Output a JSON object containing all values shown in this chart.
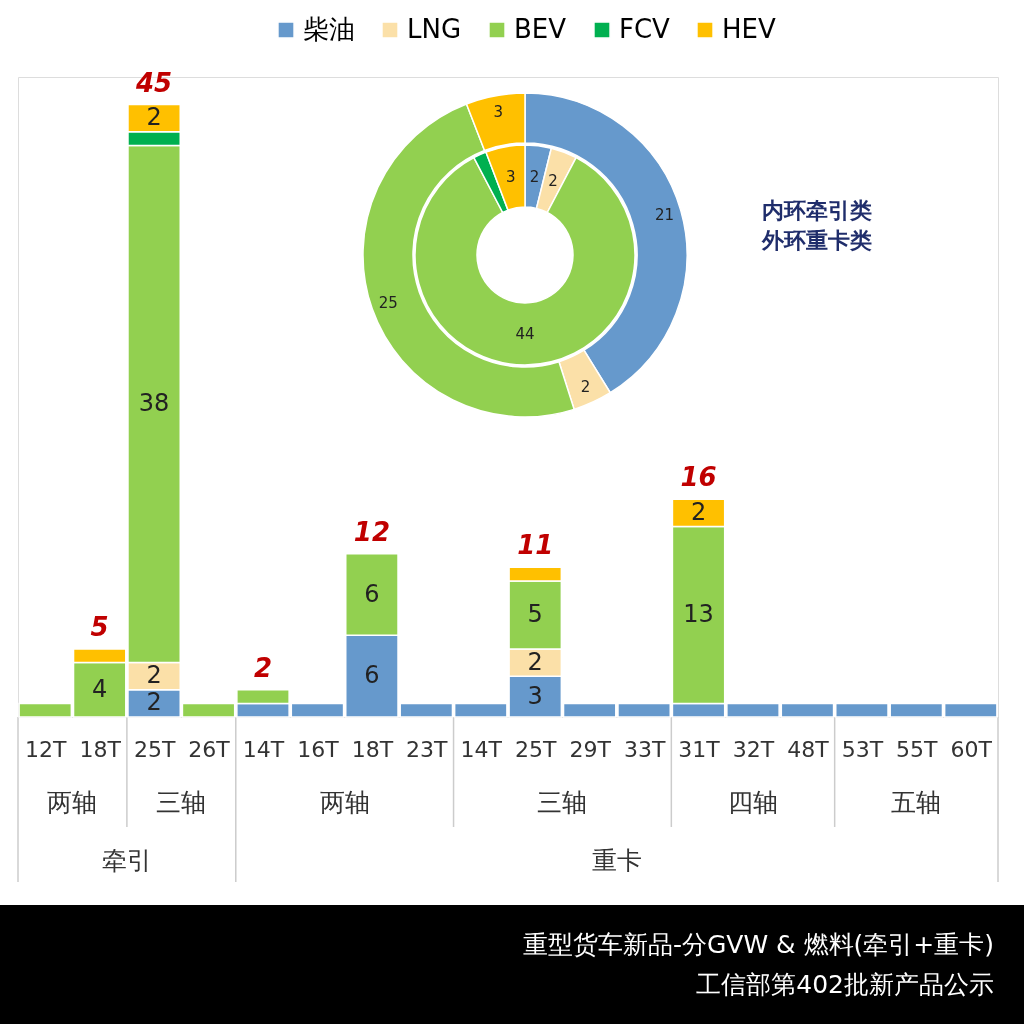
{
  "chart_data": [
    {
      "type": "bar",
      "stacked": true,
      "title": "重型货车新品-分GVW & 燃料(牵引+重卡)",
      "subtitle": "工信部第402批新产品公示",
      "categories": [
        "12T",
        "18T",
        "25T",
        "26T",
        "14T",
        "16T",
        "18T",
        "23T",
        "14T",
        "25T",
        "29T",
        "33T",
        "31T",
        "32T",
        "48T",
        "53T",
        "55T",
        "60T"
      ],
      "series": [
        {
          "color": "#6699cc",
          "values": [
            null,
            null,
            2,
            null,
            1,
            1,
            6,
            1,
            1,
            3,
            1,
            1,
            1,
            1,
            1,
            1,
            1,
            1
          ],
          "value_labels": [
            null,
            null,
            "2",
            null,
            null,
            null,
            "6",
            null,
            null,
            "3",
            null,
            null,
            null,
            null,
            null,
            null,
            null,
            null
          ]
        },
        {
          "color": "#fbe0a8",
          "values": [
            null,
            null,
            2,
            null,
            null,
            null,
            null,
            null,
            null,
            2,
            null,
            null,
            null,
            null,
            null,
            null,
            null,
            null
          ],
          "value_labels": [
            null,
            null,
            "2",
            null,
            null,
            null,
            null,
            null,
            null,
            "2",
            null,
            null,
            null,
            null,
            null,
            null,
            null,
            null
          ]
        },
        {
          "color": "#92d050",
          "values": [
            1,
            4,
            38,
            1,
            1,
            null,
            6,
            null,
            null,
            5,
            null,
            null,
            13,
            null,
            null,
            null,
            null,
            null
          ],
          "value_labels": [
            null,
            "4",
            "38",
            null,
            null,
            null,
            "6",
            null,
            null,
            "5",
            null,
            null,
            "13",
            null,
            null,
            null,
            null,
            null
          ]
        },
        {
          "color": "#00b050",
          "values": [
            null,
            null,
            1,
            null,
            null,
            null,
            null,
            null,
            null,
            null,
            null,
            null,
            null,
            null,
            null,
            null,
            null,
            null
          ],
          "value_labels": [
            null,
            null,
            null,
            null,
            null,
            null,
            null,
            null,
            null,
            null,
            null,
            null,
            null,
            null,
            null,
            null,
            null,
            null
          ]
        },
        {
          "color": "#ffc000",
          "values": [
            null,
            1,
            2,
            null,
            null,
            null,
            null,
            null,
            null,
            1,
            null,
            null,
            2,
            null,
            null,
            null,
            null,
            null
          ],
          "value_labels": [
            null,
            null,
            "2",
            null,
            null,
            null,
            null,
            null,
            null,
            null,
            null,
            null,
            "2",
            null,
            null,
            null,
            null,
            null
          ]
        }
      ],
      "totals": [
        null,
        "5",
        "45",
        null,
        "2",
        null,
        "12",
        null,
        null,
        "11",
        null,
        null,
        "16",
        null,
        null,
        null,
        null,
        null
      ],
      "annotations": [
        "两轴",
        "三轴",
        "牵引",
        "两轴",
        "三轴",
        "四轴",
        "五轴",
        "重卡"
      ],
      "tick_labels": "x"
    },
    {
      "type": "donut",
      "categories": [
        "柴油",
        "LNG",
        "BEV",
        "FCV",
        "HEV"
      ],
      "colors": [
        "#6699cc",
        "#fbe0a8",
        "#92d050",
        "#00b050",
        "#ffc000"
      ],
      "series": [
        {
          "values": [
            2,
            2,
            44,
            1,
            3
          ],
          "value_labels": [
            "2",
            "2",
            "44",
            null,
            "3"
          ]
        },
        {
          "values": [
            21,
            2,
            25,
            null,
            3
          ],
          "value_labels": [
            "21",
            "2",
            "25",
            null,
            "3"
          ]
        }
      ],
      "annotations": [
        "内环牵引类",
        "外环重卡类"
      ],
      "legend": "top"
    }
  ]
}
